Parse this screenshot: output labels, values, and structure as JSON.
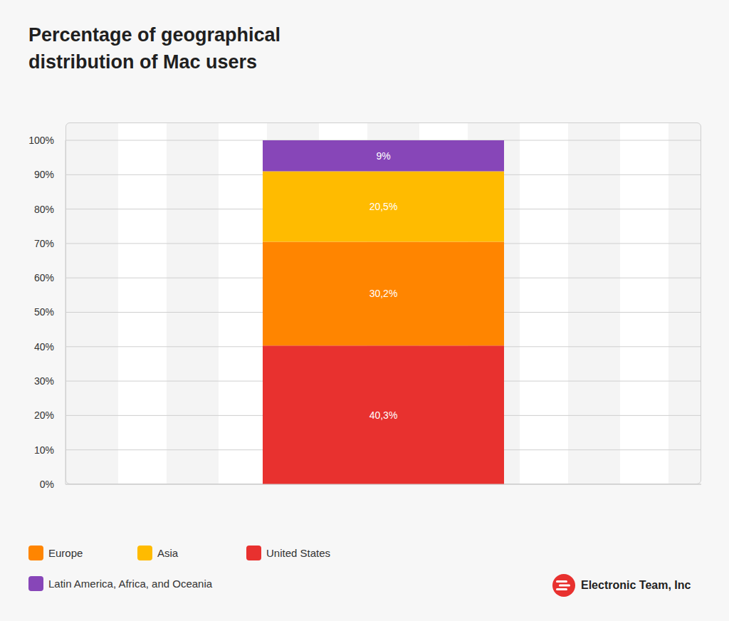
{
  "chart_data": {
    "type": "bar",
    "title": "Percentage of geographical distribution of Mac users",
    "categories": [
      null
    ],
    "series": [
      {
        "name": "United States",
        "color": "#e8312f",
        "values": [
          40.3
        ],
        "value_labels": [
          "40,3%"
        ]
      },
      {
        "name": "Europe",
        "color": "#ff8500",
        "values": [
          30.2
        ],
        "value_labels": [
          "30,2%"
        ]
      },
      {
        "name": "Asia",
        "color": "#ffbb00",
        "values": [
          20.5
        ],
        "value_labels": [
          "20,5%"
        ]
      },
      {
        "name": "Latin America, Africa, and Oceania",
        "color": "#8746b8",
        "values": [
          9
        ],
        "value_labels": [
          "9%"
        ]
      }
    ],
    "ylim": [
      0,
      100
    ],
    "yticks": [
      {
        "value": 0,
        "label": "0%"
      },
      {
        "value": 10,
        "label": "10%"
      },
      {
        "value": 20,
        "label": "20%"
      },
      {
        "value": 30,
        "label": "30%"
      },
      {
        "value": 40,
        "label": "40%"
      },
      {
        "value": 50,
        "label": "50%"
      },
      {
        "value": 60,
        "label": "60%"
      },
      {
        "value": 70,
        "label": "70%"
      },
      {
        "value": 80,
        "label": "80%"
      },
      {
        "value": 90,
        "label": "90%"
      },
      {
        "value": 100,
        "label": "100%"
      }
    ],
    "stacked": true,
    "data_labels": true,
    "grid": true,
    "legend": "bottom",
    "annotations": [
      "Electronic Team, Inc"
    ]
  }
}
